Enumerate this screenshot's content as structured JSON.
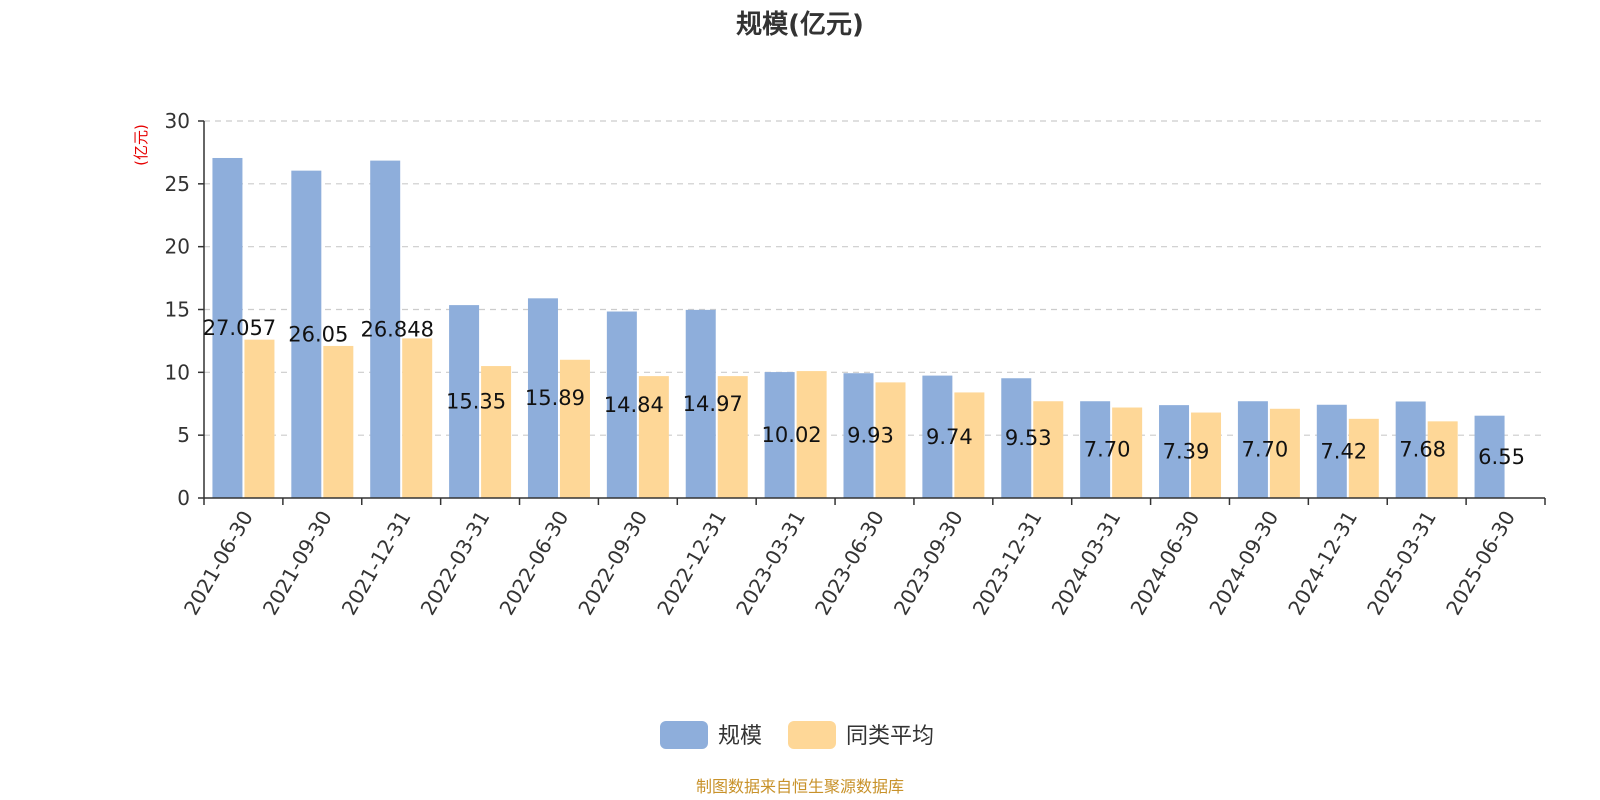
{
  "chart_data": {
    "type": "bar",
    "title": "规模(亿元)",
    "ylabel": "(亿元)",
    "ylim": [
      0,
      30
    ],
    "yticks": [
      0,
      5,
      10,
      15,
      20,
      25,
      30
    ],
    "grid": true,
    "legend_position": "bottom-center",
    "categories": [
      "2021-06-30",
      "2021-09-30",
      "2021-12-31",
      "2022-03-31",
      "2022-06-30",
      "2022-09-30",
      "2022-12-31",
      "2023-03-31",
      "2023-06-30",
      "2023-09-30",
      "2023-12-31",
      "2024-03-31",
      "2024-06-30",
      "2024-09-30",
      "2024-12-31",
      "2025-03-31",
      "2025-06-30"
    ],
    "series": [
      {
        "name": "规模",
        "color": "#8eaedb",
        "values": [
          27.057,
          26.05,
          26.848,
          15.35,
          15.89,
          14.84,
          14.97,
          10.02,
          9.93,
          9.74,
          9.53,
          7.7,
          7.39,
          7.7,
          7.42,
          7.68,
          6.55
        ],
        "labels": [
          "27.057",
          "26.05",
          "26.848",
          "15.35",
          "15.89",
          "14.84",
          "14.97",
          "10.02",
          "9.93",
          "9.74",
          "9.53",
          "7.70",
          "7.39",
          "7.70",
          "7.42",
          "7.68",
          "6.55"
        ]
      },
      {
        "name": "同类平均",
        "color": "#fed797",
        "values": [
          12.6,
          12.1,
          12.7,
          10.5,
          11.0,
          9.7,
          9.7,
          10.1,
          9.2,
          8.4,
          7.7,
          7.2,
          6.8,
          7.1,
          6.3,
          6.1,
          null
        ]
      }
    ],
    "source_note": "制图数据来自恒生聚源数据库"
  }
}
